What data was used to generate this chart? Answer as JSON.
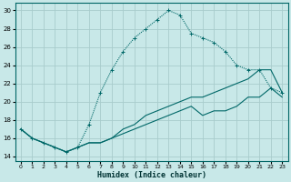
{
  "xlabel": "Humidex (Indice chaleur)",
  "bg_color": "#c8e8e8",
  "grid_color": "#a8cccc",
  "line_color": "#006868",
  "xlim": [
    -0.5,
    23.5
  ],
  "ylim": [
    13.5,
    30.8
  ],
  "xticks": [
    0,
    1,
    2,
    3,
    4,
    5,
    6,
    7,
    8,
    9,
    10,
    11,
    12,
    13,
    14,
    15,
    16,
    17,
    18,
    19,
    20,
    21,
    22,
    23
  ],
  "yticks": [
    14,
    16,
    18,
    20,
    22,
    24,
    26,
    28,
    30
  ],
  "curve1_x": [
    0,
    1,
    2,
    3,
    4,
    5,
    6,
    7,
    8,
    9,
    10,
    11,
    12,
    13,
    14,
    15,
    16,
    17,
    18,
    19,
    20,
    21,
    22,
    23
  ],
  "curve1_y": [
    17.0,
    16.0,
    15.5,
    15.0,
    14.5,
    15.0,
    17.5,
    21.0,
    23.5,
    25.5,
    27.0,
    28.0,
    29.0,
    30.0,
    29.5,
    27.5,
    27.0,
    26.5,
    25.5,
    24.0,
    23.5,
    23.5,
    21.5,
    21.0
  ],
  "curve2_x": [
    0,
    1,
    2,
    3,
    4,
    5,
    6,
    7,
    8,
    9,
    10,
    11,
    12,
    13,
    14,
    15,
    16,
    17,
    18,
    19,
    20,
    21,
    22,
    23
  ],
  "curve2_y": [
    17.0,
    16.0,
    15.5,
    15.0,
    14.5,
    15.0,
    15.5,
    15.5,
    16.0,
    17.0,
    17.5,
    18.5,
    19.0,
    19.5,
    20.0,
    20.5,
    20.5,
    21.0,
    21.5,
    22.0,
    22.5,
    23.5,
    23.5,
    21.0
  ],
  "curve3_x": [
    0,
    1,
    2,
    3,
    4,
    5,
    6,
    7,
    8,
    9,
    10,
    11,
    12,
    13,
    14,
    15,
    16,
    17,
    18,
    19,
    20,
    21,
    22,
    23
  ],
  "curve3_y": [
    17.0,
    16.0,
    15.5,
    15.0,
    14.5,
    15.0,
    15.5,
    15.5,
    16.0,
    16.5,
    17.0,
    17.5,
    18.0,
    18.5,
    19.0,
    19.5,
    18.5,
    19.0,
    19.0,
    19.5,
    20.5,
    20.5,
    21.5,
    20.5
  ]
}
